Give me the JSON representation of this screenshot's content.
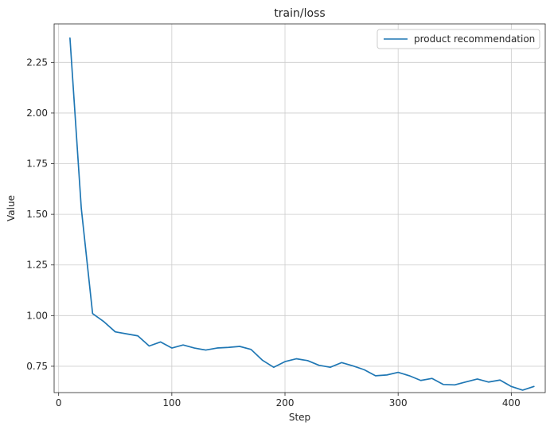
{
  "chart_data": {
    "type": "line",
    "title": "train/loss",
    "xlabel": "Step",
    "ylabel": "Value",
    "xlim": [
      -4,
      430
    ],
    "ylim": [
      0.62,
      2.44
    ],
    "x_ticks": [
      0,
      100,
      200,
      300,
      400
    ],
    "y_ticks": [
      0.75,
      1.0,
      1.25,
      1.5,
      1.75,
      2.0,
      2.25
    ],
    "y_tick_labels": [
      "0.75",
      "1.00",
      "1.25",
      "1.50",
      "1.75",
      "2.00",
      "2.25"
    ],
    "grid": true,
    "legend_position": "top-right",
    "series": [
      {
        "name": "product recommendation",
        "color": "#1f77b4",
        "x": [
          10,
          20,
          30,
          40,
          50,
          60,
          70,
          80,
          90,
          100,
          110,
          120,
          130,
          140,
          150,
          160,
          170,
          180,
          190,
          200,
          210,
          220,
          230,
          240,
          250,
          260,
          270,
          280,
          290,
          300,
          310,
          320,
          330,
          340,
          350,
          360,
          370,
          380,
          390,
          400,
          410,
          420
        ],
        "y": [
          2.37,
          1.53,
          1.01,
          0.97,
          0.92,
          0.91,
          0.9,
          0.85,
          0.87,
          0.84,
          0.855,
          0.84,
          0.83,
          0.84,
          0.843,
          0.848,
          0.833,
          0.78,
          0.745,
          0.773,
          0.787,
          0.778,
          0.755,
          0.745,
          0.768,
          0.752,
          0.733,
          0.703,
          0.707,
          0.72,
          0.703,
          0.68,
          0.69,
          0.66,
          0.658,
          0.673,
          0.687,
          0.672,
          0.682,
          0.65,
          0.632,
          0.65
        ]
      }
    ]
  }
}
